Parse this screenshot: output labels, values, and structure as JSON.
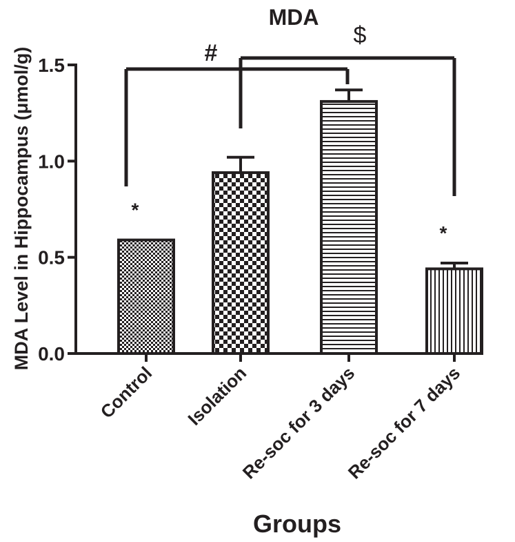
{
  "chart_data": {
    "type": "bar",
    "title": "MDA",
    "xlabel": "Groups",
    "ylabel": "MDA Level in Hippocampus (μmol/g)",
    "ylim": [
      0,
      1.5
    ],
    "yticks": [
      "0.0",
      "0.5",
      "1.0",
      "1.5"
    ],
    "grid": false,
    "categories": [
      "Control",
      "Isolation",
      "Re-soc for 3 days",
      "Re-soc for 7 days"
    ],
    "values": [
      0.59,
      0.94,
      1.31,
      0.44
    ],
    "errors": [
      0.0,
      0.08,
      0.06,
      0.03
    ],
    "patterns": [
      "fine-checker",
      "checker",
      "horizontal-lines",
      "vertical-lines"
    ],
    "point_marks": [
      "*",
      "",
      "",
      "*"
    ],
    "brackets": [
      {
        "symbol": "#",
        "from": "Control",
        "to": "Re-soc for 3 days"
      },
      {
        "symbol": "$",
        "from": "Isolation",
        "to": "Re-soc for 7 days"
      }
    ],
    "colors": {
      "ink": "#231f20",
      "background": "#ffffff"
    }
  }
}
